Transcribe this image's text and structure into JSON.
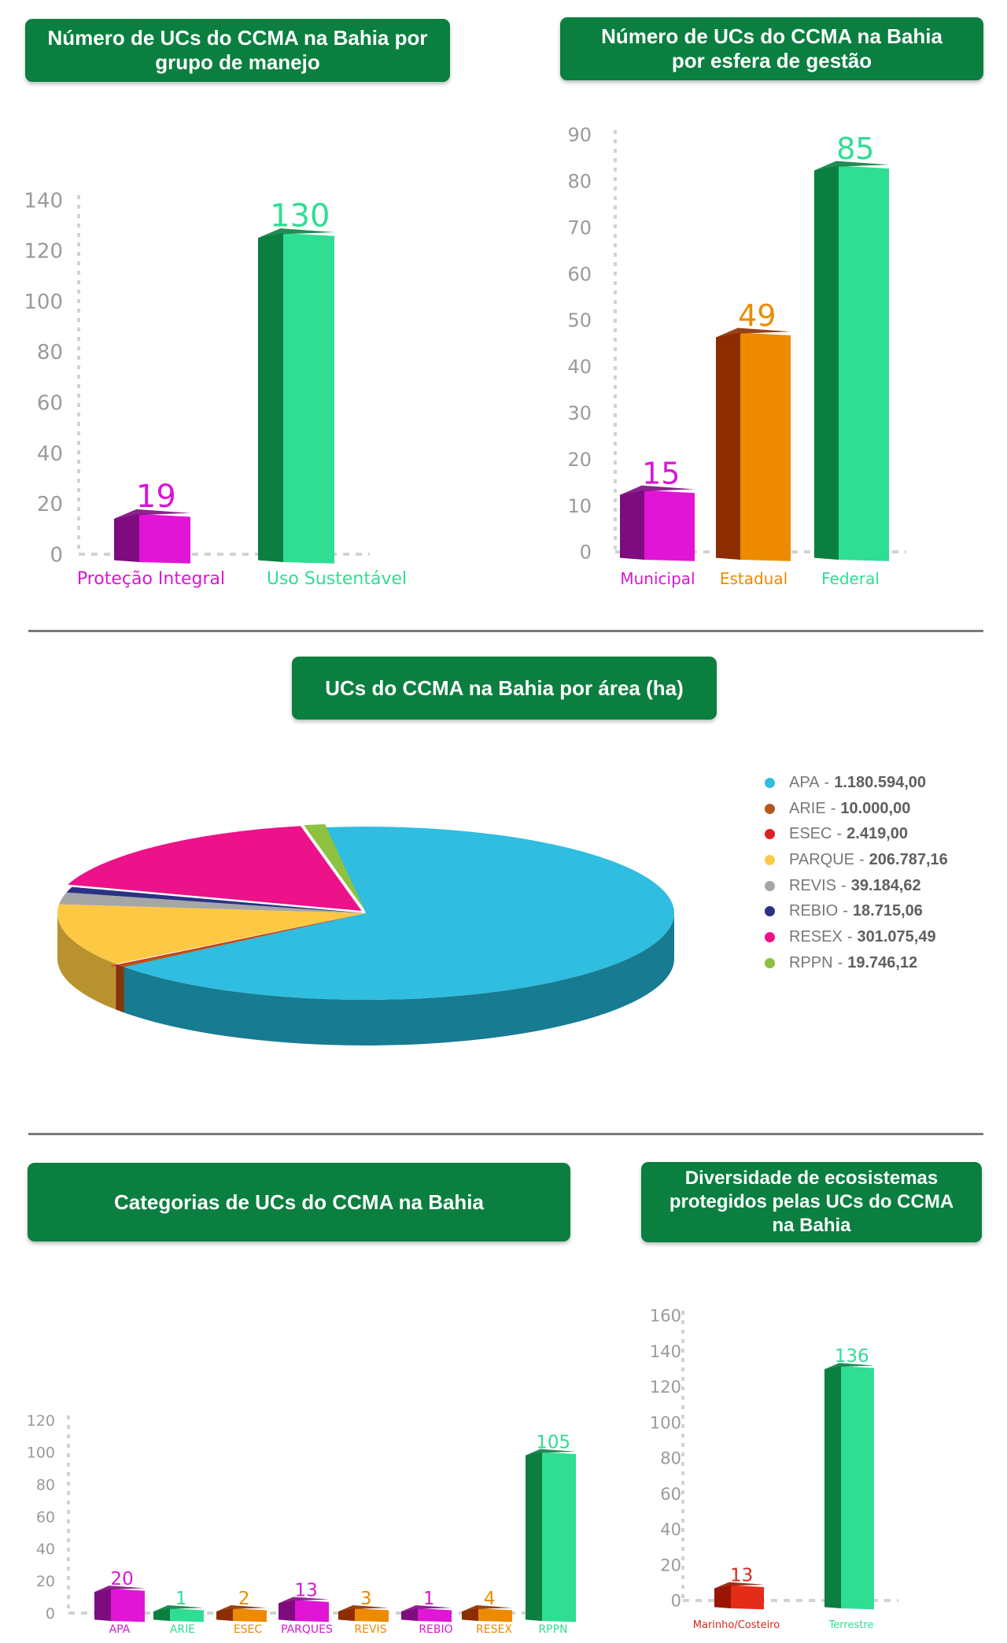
{
  "titles": {
    "manejo": "Número de UCs do CCMA na Bahia por\ngrupo de manejo",
    "esfera": "Número de UCs do CCMA na Bahia\npor esfera de gestão",
    "area": "UCs do CCMA na Bahia por área (ha)",
    "categorias": "Categorias de UCs do CCMA na Bahia",
    "ecossistemas": "Diversidade de ecosistemas\nprotegidos pelas UCs do CCMA\nna Bahia"
  },
  "chart_data": [
    {
      "id": "manejo",
      "type": "bar",
      "title": "Número de UCs do CCMA na Bahia por grupo de manejo",
      "categories": [
        "Proteção Integral",
        "Uso Sustentável"
      ],
      "values": [
        19,
        130
      ],
      "colors": [
        "#e015d6",
        "#2fdd93"
      ],
      "side_colors": [
        "#7e0c7f",
        "#0a7f3f"
      ],
      "label_colors": [
        "#d916d4",
        "#2fdd93"
      ],
      "yticks": [
        0,
        20,
        40,
        60,
        80,
        100,
        120,
        140
      ],
      "ylim": [
        0,
        140
      ],
      "grid": false
    },
    {
      "id": "esfera",
      "type": "bar",
      "title": "Número de UCs do CCMA na Bahia por esfera de gestão",
      "categories": [
        "Municipal",
        "Estadual",
        "Federal"
      ],
      "values": [
        15,
        49,
        85
      ],
      "colors": [
        "#e015d6",
        "#ed8a00",
        "#2fdd93"
      ],
      "side_colors": [
        "#7e0c7f",
        "#8c2d00",
        "#0a7f3f"
      ],
      "label_colors": [
        "#d916d4",
        "#ed8a00",
        "#2fdd93"
      ],
      "yticks": [
        0,
        10,
        20,
        30,
        40,
        50,
        60,
        70,
        80,
        90
      ],
      "ylim": [
        0,
        90
      ],
      "grid": false
    },
    {
      "id": "area",
      "type": "pie",
      "title": "UCs do CCMA na Bahia por área (ha)",
      "legend_position": "right",
      "slices": [
        {
          "name": "APA",
          "value": 1180594.0,
          "label": "1.180.594,00",
          "color": "#2fbde0",
          "dark": "#177b91"
        },
        {
          "name": "ARIE",
          "value": 10000.0,
          "label": "10.000,00",
          "color": "#b7561a",
          "dark": "#7d3a10"
        },
        {
          "name": "ESEC",
          "value": 2419.0,
          "label": "2.419,00",
          "color": "#de2026",
          "dark": "#961519"
        },
        {
          "name": "PARQUE",
          "value": 206787.16,
          "label": "206.787,16",
          "color": "#fdc945",
          "dark": "#b8922f"
        },
        {
          "name": "REVIS",
          "value": 39184.62,
          "label": "39.184,62",
          "color": "#a6a6a6",
          "dark": "#5b5b5b"
        },
        {
          "name": "REBIO",
          "value": 18715.06,
          "label": "18.715,06",
          "color": "#2a3284",
          "dark": "#1b2059"
        },
        {
          "name": "RESEX",
          "value": 301075.49,
          "label": "301.075,49",
          "color": "#ec1289",
          "dark": "#a00c5d"
        },
        {
          "name": "RPPN",
          "value": 19746.12,
          "label": "19.746,12",
          "color": "#8dc13f",
          "dark": "#5f8229"
        }
      ]
    },
    {
      "id": "categorias",
      "type": "bar",
      "title": "Categorias de UCs do CCMA na Bahia",
      "categories": [
        "APA",
        "ARIE",
        "ESEC",
        "PARQUES",
        "REVIS",
        "REBIO",
        "RESEX",
        "RPPN"
      ],
      "values": [
        20,
        1,
        2,
        13,
        3,
        1,
        4,
        105
      ],
      "colors": [
        "#e015d6",
        "#2fdd93",
        "#ed8a00",
        "#e015d6",
        "#ed8a00",
        "#e015d6",
        "#ed8a00",
        "#2fdd93"
      ],
      "side_colors": [
        "#7e0c7f",
        "#0a7f3f",
        "#8c2d00",
        "#7e0c7f",
        "#8c2d00",
        "#7e0c7f",
        "#8c2d00",
        "#0a7f3f"
      ],
      "label_colors": [
        "#d916d4",
        "#2fdd93",
        "#ed8a00",
        "#d916d4",
        "#ed8a00",
        "#d916d4",
        "#ed8a00",
        "#2fdd93"
      ],
      "yticks": [
        0,
        20,
        40,
        60,
        80,
        100,
        120
      ],
      "ylim": [
        0,
        120
      ],
      "grid": false
    },
    {
      "id": "ecossistemas",
      "type": "bar",
      "title": "Diversidade de ecosistemas protegidos pelas UCs do CCMA na Bahia",
      "categories": [
        "Marinho/Costeiro",
        "Terrestre"
      ],
      "values": [
        13,
        136
      ],
      "colors": [
        "#e32d18",
        "#2fdd93"
      ],
      "side_colors": [
        "#9b1506",
        "#0a7f3f"
      ],
      "label_colors": [
        "#d22a1c",
        "#2fdd93"
      ],
      "yticks": [
        0,
        20,
        40,
        60,
        80,
        100,
        120,
        140,
        160
      ],
      "ylim": [
        0,
        160
      ],
      "grid": false
    }
  ]
}
